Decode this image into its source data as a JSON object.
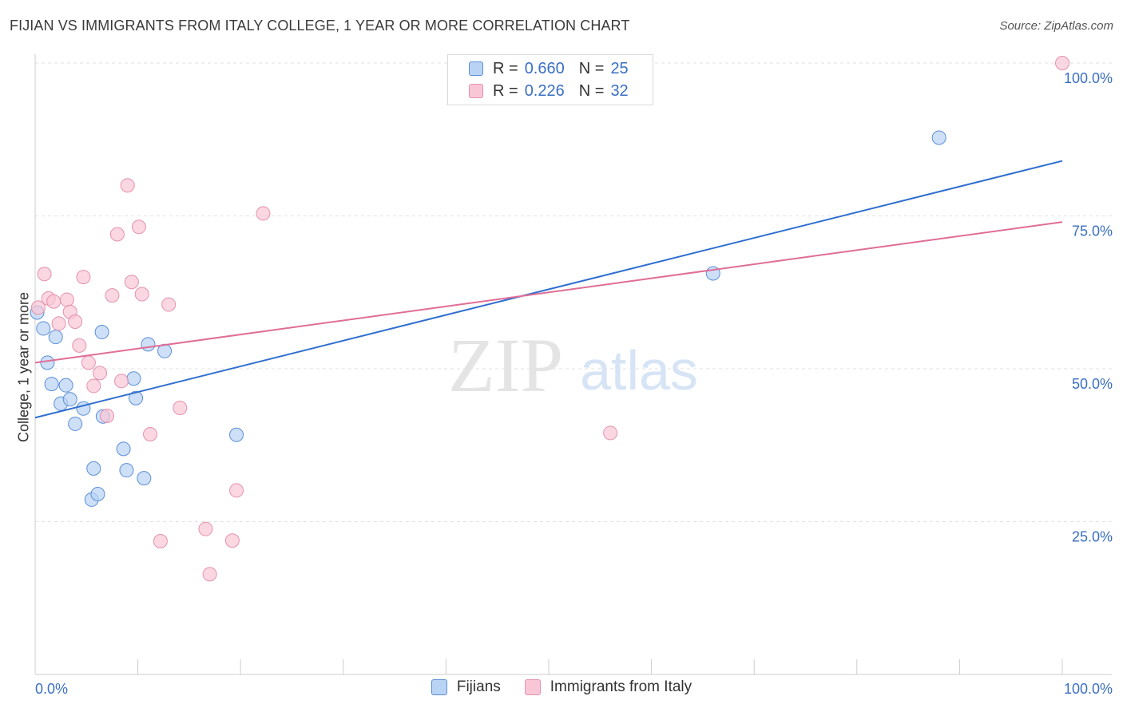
{
  "title": "FIJIAN VS IMMIGRANTS FROM ITALY COLLEGE, 1 YEAR OR MORE CORRELATION CHART",
  "source": "Source: ZipAtlas.com",
  "watermark": {
    "zip": "ZIP",
    "atlas": "atlas"
  },
  "legend": {
    "rows": [
      {
        "r_label": "R =",
        "r_value": "0.660",
        "n_label": "N =",
        "n_value": "25"
      },
      {
        "r_label": "R =",
        "r_value": "0.226",
        "n_label": "N =",
        "n_value": "32"
      }
    ]
  },
  "colors": {
    "fijians_fill": "#b9d3f5",
    "fijians_stroke": "#5b8fd6",
    "fijians_line": "#2f6fcf",
    "italy_fill": "#f9c6d6",
    "italy_stroke": "#e591ad",
    "italy_line": "#e06d96",
    "axis_text": "#3a6fc4"
  },
  "chart_data": {
    "type": "scatter",
    "title": "FIJIAN VS IMMIGRANTS FROM ITALY COLLEGE, 1 YEAR OR MORE CORRELATION CHART",
    "xlabel": "",
    "ylabel": "College, 1 year or more",
    "xlim": [
      0,
      100
    ],
    "ylim": [
      0,
      100
    ],
    "x_tick_labels": [
      "0.0%",
      "100.0%"
    ],
    "y_ticks": [
      {
        "value": 25,
        "label": "25.0%"
      },
      {
        "value": 50,
        "label": "50.0%"
      },
      {
        "value": 75,
        "label": "75.0%"
      },
      {
        "value": 100,
        "label": "100.0%"
      }
    ],
    "grid": true,
    "series": [
      {
        "name": "Fijians",
        "r": 0.66,
        "n": 25,
        "trend": {
          "x0": 0,
          "y0": 42.0,
          "x1": 100,
          "y1": 84.0
        },
        "points": [
          {
            "x": 0.2,
            "y": 59.2
          },
          {
            "x": 0.8,
            "y": 56.6
          },
          {
            "x": 1.2,
            "y": 51.0
          },
          {
            "x": 1.6,
            "y": 47.5
          },
          {
            "x": 2.0,
            "y": 55.2
          },
          {
            "x": 2.5,
            "y": 44.3
          },
          {
            "x": 3.0,
            "y": 47.3
          },
          {
            "x": 3.4,
            "y": 45.0
          },
          {
            "x": 3.9,
            "y": 41.0
          },
          {
            "x": 4.7,
            "y": 43.5
          },
          {
            "x": 5.5,
            "y": 28.6
          },
          {
            "x": 5.7,
            "y": 33.7
          },
          {
            "x": 6.1,
            "y": 29.5
          },
          {
            "x": 6.5,
            "y": 56.0
          },
          {
            "x": 6.6,
            "y": 42.2
          },
          {
            "x": 8.6,
            "y": 36.9
          },
          {
            "x": 8.9,
            "y": 33.4
          },
          {
            "x": 9.6,
            "y": 48.4
          },
          {
            "x": 9.8,
            "y": 45.2
          },
          {
            "x": 10.6,
            "y": 32.1
          },
          {
            "x": 11.0,
            "y": 54.0
          },
          {
            "x": 12.6,
            "y": 52.9
          },
          {
            "x": 19.6,
            "y": 39.2
          },
          {
            "x": 66.0,
            "y": 65.6
          },
          {
            "x": 88.0,
            "y": 87.8
          }
        ]
      },
      {
        "name": "Immigrants from Italy",
        "r": 0.226,
        "n": 32,
        "trend": {
          "x0": 0,
          "y0": 51.0,
          "x1": 100,
          "y1": 74.0
        },
        "points": [
          {
            "x": 0.3,
            "y": 60.0
          },
          {
            "x": 0.9,
            "y": 65.5
          },
          {
            "x": 1.3,
            "y": 61.5
          },
          {
            "x": 1.8,
            "y": 61.0
          },
          {
            "x": 2.3,
            "y": 57.4
          },
          {
            "x": 3.1,
            "y": 61.3
          },
          {
            "x": 3.4,
            "y": 59.3
          },
          {
            "x": 3.9,
            "y": 57.7
          },
          {
            "x": 4.3,
            "y": 53.8
          },
          {
            "x": 4.7,
            "y": 65.0
          },
          {
            "x": 5.2,
            "y": 51.0
          },
          {
            "x": 5.7,
            "y": 47.2
          },
          {
            "x": 6.3,
            "y": 49.3
          },
          {
            "x": 7.0,
            "y": 42.3
          },
          {
            "x": 7.5,
            "y": 62.0
          },
          {
            "x": 8.0,
            "y": 72.0
          },
          {
            "x": 8.4,
            "y": 48.0
          },
          {
            "x": 9.0,
            "y": 80.0
          },
          {
            "x": 9.4,
            "y": 64.2
          },
          {
            "x": 10.1,
            "y": 73.2
          },
          {
            "x": 10.4,
            "y": 62.2
          },
          {
            "x": 11.2,
            "y": 39.3
          },
          {
            "x": 12.2,
            "y": 21.8
          },
          {
            "x": 13.0,
            "y": 60.5
          },
          {
            "x": 14.1,
            "y": 43.6
          },
          {
            "x": 16.6,
            "y": 23.8
          },
          {
            "x": 17.0,
            "y": 16.4
          },
          {
            "x": 19.2,
            "y": 21.9
          },
          {
            "x": 19.6,
            "y": 30.1
          },
          {
            "x": 22.2,
            "y": 75.4
          },
          {
            "x": 56.0,
            "y": 39.5
          },
          {
            "x": 100.0,
            "y": 100.0
          }
        ]
      }
    ]
  }
}
